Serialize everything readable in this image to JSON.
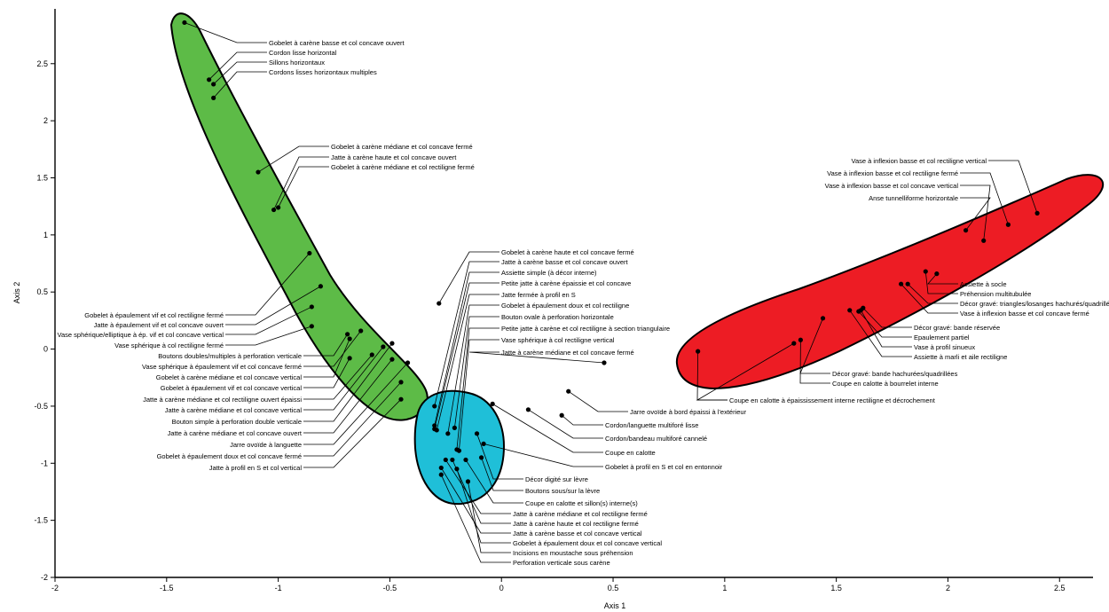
{
  "chart_data": {
    "type": "scatter",
    "xlabel": "Axis 1",
    "ylabel": "Axis 2",
    "xlim": [
      -2,
      2.65
    ],
    "ylim": [
      -2,
      2.98
    ],
    "xticks": [
      "-2",
      "-1.5",
      "-1",
      "-0.5",
      "0",
      "0.5",
      "1",
      "1.5",
      "2",
      "2.5"
    ],
    "yticks": [
      "-2",
      "-1.5",
      "-1",
      "-0.5",
      "0",
      "0.5",
      "1",
      "1.5",
      "2",
      "2.5"
    ],
    "grid": false,
    "legend": "none",
    "groups": [
      {
        "id": "green",
        "color": "#5dbb47"
      },
      {
        "id": "cyan",
        "color": "#1fbfd8"
      },
      {
        "id": "red",
        "color": "#ed1c24"
      }
    ],
    "points": [
      {
        "group": "green",
        "x": -1.42,
        "y": 2.86,
        "label": "Gobelet à carène basse et col concave ouvert"
      },
      {
        "group": "green",
        "x": -1.31,
        "y": 2.36,
        "label": "Cordon lisse horizontal"
      },
      {
        "group": "green",
        "x": -1.29,
        "y": 2.32,
        "label": "Sillons horizontaux"
      },
      {
        "group": "green",
        "x": -1.29,
        "y": 2.2,
        "label": "Cordons lisses horizontaux multiples"
      },
      {
        "group": "green",
        "x": -1.09,
        "y": 1.55,
        "label": "Gobelet à carène médiane et col concave fermé"
      },
      {
        "group": "green",
        "x": -1.02,
        "y": 1.22,
        "label": "Jatte à carène haute et col concave ouvert"
      },
      {
        "group": "green",
        "x": -1.0,
        "y": 1.24,
        "label": "Gobelet à carène médiane et col rectiligne fermé"
      },
      {
        "group": "green",
        "x": -0.86,
        "y": 0.84,
        "label": "Gobelet à épaulement vif et col rectiligne fermé"
      },
      {
        "group": "green",
        "x": -0.81,
        "y": 0.55,
        "label": "Jatte à épaulement vif et col concave ouvert"
      },
      {
        "group": "green",
        "x": -0.85,
        "y": 0.37,
        "label": "Vase sphérique/elliptique à ép. vif et col concave vertical"
      },
      {
        "group": "green",
        "x": -0.85,
        "y": 0.2,
        "label": "Vase sphérique à col rectiligne fermé"
      },
      {
        "group": "green",
        "x": -0.69,
        "y": 0.13,
        "label": "Boutons doubles/multiples à perforation verticale"
      },
      {
        "group": "green",
        "x": -0.63,
        "y": 0.16,
        "label": "Vase sphérique à épaulement vif et col concave fermé"
      },
      {
        "group": "green",
        "x": -0.68,
        "y": 0.09,
        "label": "Gobelet à carène médiane et col concave vertical"
      },
      {
        "group": "green",
        "x": -0.68,
        "y": -0.08,
        "label": "Gobelet à épaulement vif et col concave vertical"
      },
      {
        "group": "green",
        "x": -0.58,
        "y": -0.05,
        "label": "Jatte à carène médiane et col rectiligne ouvert épaissi"
      },
      {
        "group": "green",
        "x": -0.53,
        "y": 0.02,
        "label": "Jatte à carène médiane et col concave vertical"
      },
      {
        "group": "green",
        "x": -0.49,
        "y": 0.05,
        "label": "Bouton simple à perforation double verticale"
      },
      {
        "group": "green",
        "x": -0.49,
        "y": -0.09,
        "label": "Jatte à carène médiane et col concave ouvert"
      },
      {
        "group": "green",
        "x": -0.42,
        "y": -0.12,
        "label": "Jarre ovoïde à languette"
      },
      {
        "group": "green",
        "x": -0.45,
        "y": -0.29,
        "label": "Gobelet à épaulement doux et col concave fermé"
      },
      {
        "group": "green",
        "x": -0.45,
        "y": -0.44,
        "label": "Jatte à profil en S et col vertical"
      },
      {
        "group": "cyan",
        "x": -0.28,
        "y": 0.4,
        "label": "Gobelet à carène haute et col concave fermé"
      },
      {
        "group": "cyan",
        "x": -0.3,
        "y": -0.5,
        "label": "Jatte à carène basse et col concave ouvert"
      },
      {
        "group": "cyan",
        "x": -0.3,
        "y": -0.67,
        "label": "Assiette simple (à décor interne)"
      },
      {
        "group": "cyan",
        "x": -0.3,
        "y": -0.7,
        "label": "Petite jatte à carène épaissie et col concave"
      },
      {
        "group": "cyan",
        "x": -0.29,
        "y": -0.71,
        "label": "Jatte fermée à profil en S"
      },
      {
        "group": "cyan",
        "x": -0.24,
        "y": -0.74,
        "label": "Gobelet à épaulement doux et col rectiligne"
      },
      {
        "group": "cyan",
        "x": -0.21,
        "y": -0.69,
        "label": "Bouton ovale à perforation horizontale"
      },
      {
        "group": "cyan",
        "x": -0.2,
        "y": -0.88,
        "label": "Petite jatte à carène et col rectiligne à section triangulaire"
      },
      {
        "group": "cyan",
        "x": -0.19,
        "y": -0.89,
        "label": "Vase sphérique à col rectiligne vertical"
      },
      {
        "group": "cyan",
        "x": 0.46,
        "y": -0.12,
        "label": "Jatte à carène médiane et col concave fermé"
      },
      {
        "group": "cyan",
        "x": 0.3,
        "y": -0.37,
        "label": "Jarre ovoïde à bord épaissi à l'extérieur"
      },
      {
        "group": "cyan",
        "x": 0.27,
        "y": -0.58,
        "label": "Cordon/languette multiforé lisse"
      },
      {
        "group": "cyan",
        "x": 0.12,
        "y": -0.53,
        "label": "Cordon/bandeau multiforé cannelé"
      },
      {
        "group": "cyan",
        "x": -0.04,
        "y": -0.48,
        "label": "Coupe en calotte"
      },
      {
        "group": "cyan",
        "x": -0.08,
        "y": -0.83,
        "label": "Gobelet à profil en S et col en entonnoir"
      },
      {
        "group": "cyan",
        "x": -0.11,
        "y": -0.74,
        "label": "Décor digité sur lèvre"
      },
      {
        "group": "cyan",
        "x": -0.09,
        "y": -0.95,
        "label": "Boutons sous/sur la lèvre"
      },
      {
        "group": "cyan",
        "x": -0.16,
        "y": -0.97,
        "label": "Coupe en calotte et sillon(s) interne(s)"
      },
      {
        "group": "cyan",
        "x": -0.25,
        "y": -0.97,
        "label": "Jatte à carène médiane et col rectiligne fermé"
      },
      {
        "group": "cyan",
        "x": -0.22,
        "y": -0.97,
        "label": "Jatte à carène haute et col rectiligne fermé"
      },
      {
        "group": "cyan",
        "x": -0.27,
        "y": -1.04,
        "label": "Jatte à carène basse et col concave vertical"
      },
      {
        "group": "cyan",
        "x": -0.2,
        "y": -1.05,
        "label": "Gobelet à épaulement doux et col concave vertical"
      },
      {
        "group": "cyan",
        "x": -0.15,
        "y": -1.16,
        "label": "Incisions en moustache sous préhension"
      },
      {
        "group": "cyan",
        "x": -0.27,
        "y": -1.1,
        "label": "Perforation verticale sous carène"
      },
      {
        "group": "red",
        "x": 2.4,
        "y": 1.19,
        "label": "Vase à inflexion basse et col rectiligne vertical"
      },
      {
        "group": "red",
        "x": 2.27,
        "y": 1.09,
        "label": "Vase à inflexion basse et col rectiligne fermé"
      },
      {
        "group": "red",
        "x": 2.16,
        "y": 0.95,
        "label": "Vase à inflexion basse et col concave vertical"
      },
      {
        "group": "red",
        "x": 2.08,
        "y": 1.04,
        "label": "Anse tunnelliforme horizontale"
      },
      {
        "group": "red",
        "x": 1.95,
        "y": 0.66,
        "label": "Assiette à socle"
      },
      {
        "group": "red",
        "x": 1.9,
        "y": 0.68,
        "label": "Préhension multitubulée"
      },
      {
        "group": "red",
        "x": 1.82,
        "y": 0.57,
        "label": "Décor gravé: triangles/losanges hachurés/quadrillés"
      },
      {
        "group": "red",
        "x": 1.79,
        "y": 0.57,
        "label": "Vase à inflexion basse et col concave fermé"
      },
      {
        "group": "red",
        "x": 1.62,
        "y": 0.36,
        "label": "Décor gravé: bande réservée"
      },
      {
        "group": "red",
        "x": 1.6,
        "y": 0.33,
        "label": "Epaulement partiel"
      },
      {
        "group": "red",
        "x": 1.61,
        "y": 0.34,
        "label": "Vase à profil sinueux"
      },
      {
        "group": "red",
        "x": 1.56,
        "y": 0.34,
        "label": "Assiette à marli et aile rectiligne"
      },
      {
        "group": "red",
        "x": 1.44,
        "y": 0.27,
        "label": "Décor gravé: bande hachurées/quadrillées"
      },
      {
        "group": "red",
        "x": 1.34,
        "y": 0.08,
        "label": "Coupe en calotte à bourrelet interne"
      },
      {
        "group": "red",
        "x": 1.31,
        "y": 0.05,
        "label": "Coupe en calotte à épaississement interne rectiligne et décrochement"
      },
      {
        "group": "red",
        "x": 0.88,
        "y": -0.02,
        "label": "Coupe en calotte à épaississement interne rectiligne et décrochement (2)"
      }
    ]
  }
}
